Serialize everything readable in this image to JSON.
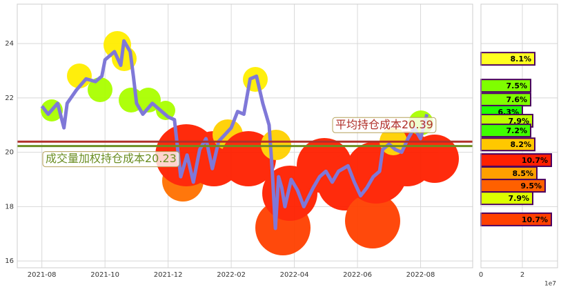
{
  "chart_data": [
    {
      "type": "line",
      "x": [
        0.0,
        0.2,
        0.5,
        0.7,
        0.8,
        1.1,
        1.4,
        1.7,
        1.9,
        2.0,
        2.3,
        2.5,
        2.6,
        2.8,
        2.9,
        3.0,
        3.2,
        3.5,
        3.8,
        4.0,
        4.2,
        4.4,
        4.6,
        4.8,
        5.0,
        5.2,
        5.4,
        5.6,
        6.0,
        6.2,
        6.4,
        6.6,
        6.8,
        7.0,
        7.2,
        7.3,
        7.4,
        7.5,
        7.6,
        7.7,
        7.9,
        8.1,
        8.3,
        8.6,
        8.8,
        9.0,
        9.2,
        9.4,
        9.7,
        9.9,
        10.1,
        10.3,
        10.5,
        10.7,
        10.8,
        11.0,
        11.2,
        11.4,
        11.6,
        11.8,
        12.0,
        12.2
      ],
      "series": [
        {
          "color": "#7f78d8",
          "values": [
            21.7,
            21.4,
            21.8,
            20.9,
            21.8,
            22.3,
            22.7,
            22.6,
            22.8,
            23.4,
            23.7,
            23.2,
            24.1,
            23.7,
            22.8,
            21.8,
            21.4,
            21.8,
            21.5,
            21.3,
            21.2,
            19.1,
            19.9,
            18.9,
            20.1,
            20.5,
            19.4,
            20.4,
            20.9,
            21.5,
            21.4,
            22.7,
            22.8,
            21.8,
            21.0,
            19.3,
            17.2,
            19.1,
            18.7,
            18.0,
            19.0,
            18.6,
            18.0,
            18.7,
            19.1,
            19.3,
            18.9,
            19.3,
            19.5,
            18.9,
            18.4,
            18.7,
            19.1,
            19.3,
            20.1,
            20.3,
            20.1,
            20.0,
            20.5,
            20.9,
            20.5,
            21.4
          ]
        }
      ],
      "xlim": [
        -0.78,
        13.65
      ],
      "xticks": [
        {
          "value": 0,
          "label": "2021-08"
        },
        {
          "value": 2,
          "label": "2021-10"
        },
        {
          "value": 4,
          "label": "2021-12"
        },
        {
          "value": 6,
          "label": "2022-02"
        },
        {
          "value": 8,
          "label": "2022-04"
        },
        {
          "value": 10,
          "label": "2022-06"
        },
        {
          "value": 12,
          "label": "2022-08"
        }
      ],
      "ylim": [
        15.75,
        25.45
      ],
      "yticks": [
        16,
        18,
        20,
        22,
        24
      ],
      "grid": true,
      "hlines": [
        {
          "value": 20.39,
          "label": "平均持仓成本20.39",
          "color": "#b0302a"
        },
        {
          "value": 20.23,
          "label": "成交量加权持仓成本20.23",
          "color": "#6b8e23"
        }
      ]
    },
    {
      "type": "barh",
      "y": [
        23.44,
        22.45,
        21.94,
        21.49,
        21.16,
        20.8,
        20.29,
        19.71,
        19.23,
        18.77,
        18.31,
        17.53
      ],
      "values": [
        26000000,
        24000000,
        24000000,
        20000000,
        25000000,
        24000000,
        26000000,
        34000000,
        27000000,
        31000000,
        25000000,
        34000000
      ],
      "labels": [
        "8.1%",
        "7.5%",
        "7.6%",
        "6.3%",
        "7.9%",
        "7.2%",
        "8.2%",
        "10.7%",
        "8.5%",
        "9.5%",
        "7.9%",
        "10.7%"
      ],
      "colors": [
        "#ffff20",
        "#7fff00",
        "#7fff00",
        "#20ff00",
        "#bfff00",
        "#40ff00",
        "#ffc800",
        "#ff2000",
        "#ffa000",
        "#ff6000",
        "#ddff00",
        "#ff4000"
      ],
      "xlim": [
        0,
        37000000
      ],
      "xticks": [
        0,
        {
          "value": 20000000,
          "label": "2"
        }
      ],
      "x_offset_label": "1e7",
      "ylim": [
        15.75,
        25.45
      ],
      "yticks": [
        16,
        18,
        20,
        22,
        24
      ],
      "grid": true
    }
  ]
}
